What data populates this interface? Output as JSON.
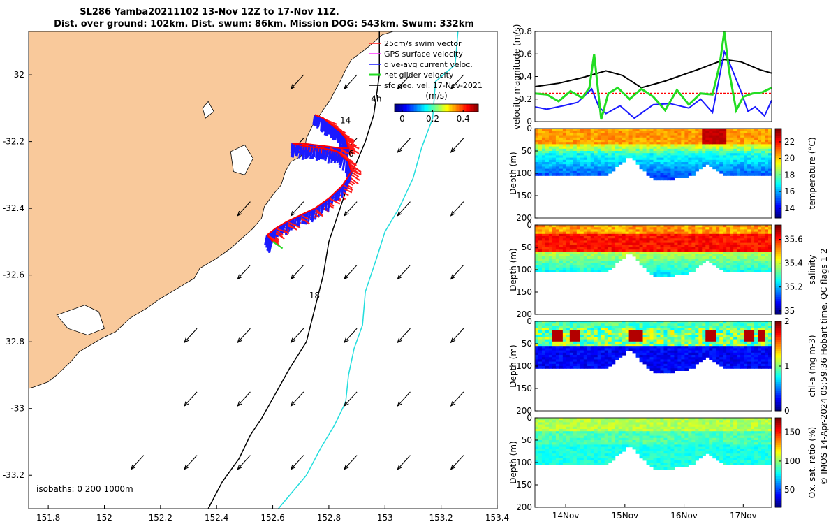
{
  "title": {
    "line1": "SL286 Yamba20211102 13-Nov 12Z to 17-Nov 11Z.",
    "line2": "Dist. over ground: 102km. Dist. swum: 86km. Mission DOG: 543km. Swum: 332km"
  },
  "footer_note": "© IMOS 14-Apr-2024 05:59:36 Hobart time. QC flags 1  2",
  "colors": {
    "land": "#f9c99b",
    "swim": "#ff1a1a",
    "gps": "#ff33ff",
    "dive": "#1a1aff",
    "net": "#22dd22",
    "track": "#ff0000",
    "iso200": "#000000",
    "iso1000": "#22dddd"
  },
  "chart_data": [
    {
      "id": "map",
      "type": "scatter",
      "title": "",
      "xlabel": "",
      "ylabel": "",
      "xlim": [
        151.73,
        153.4
      ],
      "ylim": [
        -33.3,
        -31.87
      ],
      "x_ticks": [
        "151.8",
        "152",
        "152.2",
        "152.4",
        "152.6",
        "152.8",
        "153",
        "153.2",
        "153.4"
      ],
      "x_tick_values": [
        151.8,
        152.0,
        152.2,
        152.4,
        152.6,
        152.8,
        153.0,
        153.2,
        153.4
      ],
      "y_ticks": [
        "-32",
        "-32.2",
        "-32.4",
        "-32.6",
        "-32.8",
        "-33",
        "-33.2"
      ],
      "y_tick_values": [
        -32.0,
        -32.2,
        -32.4,
        -32.6,
        -32.8,
        -33.0,
        -33.2
      ],
      "legend": {
        "placement": "top-right",
        "items": [
          {
            "label": "25cm/s swim vector",
            "color": "#ff1a1a"
          },
          {
            "label": "GPS surface velocity",
            "color": "#ff33ff"
          },
          {
            "label": "dive-avg current veloc.",
            "color": "#1a1aff"
          },
          {
            "label": "net glider velocity",
            "color": "#22dd22"
          },
          {
            "label": "sfc geo. vel. 17-Nov-2021",
            "color": "#000000"
          }
        ]
      },
      "colorbar": {
        "label": "(m/s)",
        "ticks": [
          "0",
          "0.2",
          "0.4"
        ],
        "tick_values": [
          0,
          0.2,
          0.4
        ],
        "range": [
          -0.05,
          0.5
        ]
      },
      "isobath_label": "isobaths: 0   200  1000m",
      "day_labels": [
        {
          "text": "14",
          "lon": 152.84,
          "lat": -32.145
        },
        {
          "text": "6",
          "lon": 152.87,
          "lat": -32.245
        },
        {
          "text": "18",
          "lon": 152.73,
          "lat": -32.67
        },
        {
          "text": "4h",
          "lon": 152.95,
          "lat": -32.08
        }
      ],
      "coast": [
        [
          153.03,
          -31.87
        ],
        [
          152.99,
          -31.88
        ],
        [
          152.95,
          -31.91
        ],
        [
          152.92,
          -31.93
        ],
        [
          152.88,
          -31.955
        ],
        [
          152.86,
          -31.985
        ],
        [
          152.84,
          -32.02
        ],
        [
          152.82,
          -32.05
        ],
        [
          152.805,
          -32.075
        ],
        [
          152.78,
          -32.105
        ],
        [
          152.76,
          -32.13
        ],
        [
          152.74,
          -32.155
        ],
        [
          152.72,
          -32.19
        ],
        [
          152.715,
          -32.215
        ],
        [
          152.7,
          -32.245
        ],
        [
          152.665,
          -32.26
        ],
        [
          152.645,
          -32.29
        ],
        [
          152.63,
          -32.33
        ],
        [
          152.6,
          -32.36
        ],
        [
          152.57,
          -32.395
        ],
        [
          152.56,
          -32.43
        ],
        [
          152.53,
          -32.46
        ],
        [
          152.49,
          -32.49
        ],
        [
          152.45,
          -32.52
        ],
        [
          152.4,
          -32.55
        ],
        [
          152.36,
          -32.57
        ],
        [
          152.34,
          -32.58
        ],
        [
          152.32,
          -32.61
        ],
        [
          152.26,
          -32.64
        ],
        [
          152.2,
          -32.67
        ],
        [
          152.15,
          -32.7
        ],
        [
          152.09,
          -32.73
        ],
        [
          152.04,
          -32.77
        ],
        [
          151.99,
          -32.79
        ],
        [
          151.95,
          -32.81
        ],
        [
          151.91,
          -32.83
        ],
        [
          151.88,
          -32.86
        ],
        [
          151.83,
          -32.9
        ],
        [
          151.8,
          -32.92
        ],
        [
          151.75,
          -32.935
        ],
        [
          151.73,
          -32.94
        ]
      ],
      "track_gps": [
        [
          152.75,
          -32.12
        ],
        [
          152.78,
          -32.13
        ],
        [
          152.81,
          -32.15
        ],
        [
          152.84,
          -32.17
        ],
        [
          152.86,
          -32.19
        ],
        [
          152.87,
          -32.22
        ],
        [
          152.84,
          -32.22
        ],
        [
          152.8,
          -32.215
        ],
        [
          152.75,
          -32.21
        ],
        [
          152.7,
          -32.205
        ],
        [
          152.67,
          -32.205
        ],
        [
          152.72,
          -32.215
        ],
        [
          152.78,
          -32.22
        ],
        [
          152.83,
          -32.23
        ],
        [
          152.87,
          -32.26
        ],
        [
          152.88,
          -32.29
        ],
        [
          152.85,
          -32.33
        ],
        [
          152.8,
          -32.37
        ],
        [
          152.75,
          -32.4
        ],
        [
          152.7,
          -32.42
        ],
        [
          152.65,
          -32.44
        ],
        [
          152.61,
          -32.46
        ],
        [
          152.58,
          -32.48
        ],
        [
          152.6,
          -32.5
        ]
      ],
      "net_velocity_end": [
        152.635,
        -32.52
      ],
      "geo_vector_step_deg": 0.19,
      "geo_vector": {
        "dlon": -0.045,
        "dlat": -0.042
      }
    },
    {
      "id": "velocity",
      "type": "line",
      "ylabel": "velocity magnitude (m/s)",
      "ylim": [
        0,
        0.8
      ],
      "yticks": [
        "0",
        "0.2",
        "0.4",
        "0.6",
        "0.8"
      ],
      "ytick_values": [
        0,
        0.2,
        0.4,
        0.6,
        0.8
      ],
      "xlim": [
        0,
        1
      ],
      "series": [
        {
          "key": "black",
          "color": "#000000",
          "x": [
            0,
            0.1,
            0.2,
            0.3,
            0.37,
            0.45,
            0.55,
            0.7,
            0.8,
            0.87,
            0.95,
            1.0
          ],
          "y": [
            0.31,
            0.34,
            0.39,
            0.45,
            0.41,
            0.3,
            0.36,
            0.47,
            0.55,
            0.53,
            0.46,
            0.43
          ]
        },
        {
          "key": "red",
          "color": "#ff0000",
          "x": [
            0,
            1
          ],
          "y": [
            0.25,
            0.25
          ]
        },
        {
          "key": "blue",
          "color": "#1a1aff",
          "x": [
            0,
            0.05,
            0.12,
            0.18,
            0.24,
            0.27,
            0.3,
            0.36,
            0.42,
            0.5,
            0.57,
            0.65,
            0.7,
            0.75,
            0.8,
            0.83,
            0.87,
            0.9,
            0.93,
            0.97,
            1.0
          ],
          "y": [
            0.13,
            0.11,
            0.14,
            0.17,
            0.29,
            0.13,
            0.07,
            0.14,
            0.03,
            0.15,
            0.16,
            0.12,
            0.2,
            0.08,
            0.62,
            0.48,
            0.27,
            0.09,
            0.13,
            0.05,
            0.19
          ]
        },
        {
          "key": "green",
          "color": "#22dd22",
          "x": [
            0,
            0.05,
            0.1,
            0.15,
            0.2,
            0.23,
            0.25,
            0.28,
            0.31,
            0.35,
            0.4,
            0.45,
            0.5,
            0.55,
            0.6,
            0.65,
            0.7,
            0.75,
            0.78,
            0.8,
            0.82,
            0.85,
            0.88,
            0.92,
            0.96,
            1.0
          ],
          "y": [
            0.25,
            0.24,
            0.18,
            0.27,
            0.21,
            0.3,
            0.6,
            0.02,
            0.25,
            0.3,
            0.2,
            0.29,
            0.22,
            0.1,
            0.28,
            0.15,
            0.25,
            0.24,
            0.5,
            0.8,
            0.45,
            0.1,
            0.22,
            0.25,
            0.26,
            0.3
          ]
        }
      ]
    },
    {
      "id": "temperature",
      "type": "heatmap",
      "ylabel": "Depth (m)",
      "cbar_label": "temperature (°C)",
      "cbar_ticks": [
        "14",
        "16",
        "18",
        "20",
        "22"
      ],
      "cbar_tick_values": [
        14,
        16,
        18,
        20,
        22
      ],
      "cbar_range": [
        12.8,
        23.6
      ],
      "ylim": [
        200,
        0
      ],
      "yticks": [
        "0",
        "50",
        "100",
        "150",
        "200"
      ],
      "ytick_values": [
        0,
        50,
        100,
        150,
        200
      ]
    },
    {
      "id": "salinity",
      "type": "heatmap",
      "ylabel": "Depth (m)",
      "cbar_label": "salinity",
      "cbar_ticks": [
        "35",
        "35.2",
        "35.4",
        "35.6"
      ],
      "cbar_tick_values": [
        35.0,
        35.2,
        35.4,
        35.6
      ],
      "cbar_range": [
        34.97,
        35.72
      ],
      "ylim": [
        200,
        0
      ],
      "yticks": [
        "0",
        "50",
        "100",
        "150",
        "200"
      ],
      "ytick_values": [
        0,
        50,
        100,
        150,
        200
      ]
    },
    {
      "id": "chla",
      "type": "heatmap",
      "ylabel": "Depth (m)",
      "cbar_label": "chl-a (mg m-3)",
      "cbar_ticks": [
        "0",
        "1",
        "2"
      ],
      "cbar_tick_values": [
        0,
        1,
        2
      ],
      "cbar_range": [
        0,
        2
      ],
      "ylim": [
        200,
        0
      ],
      "yticks": [
        "0",
        "50",
        "100",
        "150",
        "200"
      ],
      "ytick_values": [
        0,
        50,
        100,
        150,
        200
      ]
    },
    {
      "id": "oxygen",
      "type": "heatmap",
      "ylabel": "Depth (m)",
      "cbar_label": "Ox. sat. ratio (%)",
      "cbar_ticks": [
        "50",
        "100",
        "150"
      ],
      "cbar_tick_values": [
        50,
        100,
        150
      ],
      "cbar_range": [
        20,
        175
      ],
      "ylim": [
        200,
        0
      ],
      "yticks": [
        "0",
        "50",
        "100",
        "150",
        "200"
      ],
      "ytick_values": [
        0,
        50,
        100,
        150,
        200
      ],
      "xticks": [
        "14Nov",
        "15Nov",
        "16Nov",
        "17Nov"
      ],
      "xtick_values": [
        0.13,
        0.38,
        0.63,
        0.88
      ]
    }
  ]
}
